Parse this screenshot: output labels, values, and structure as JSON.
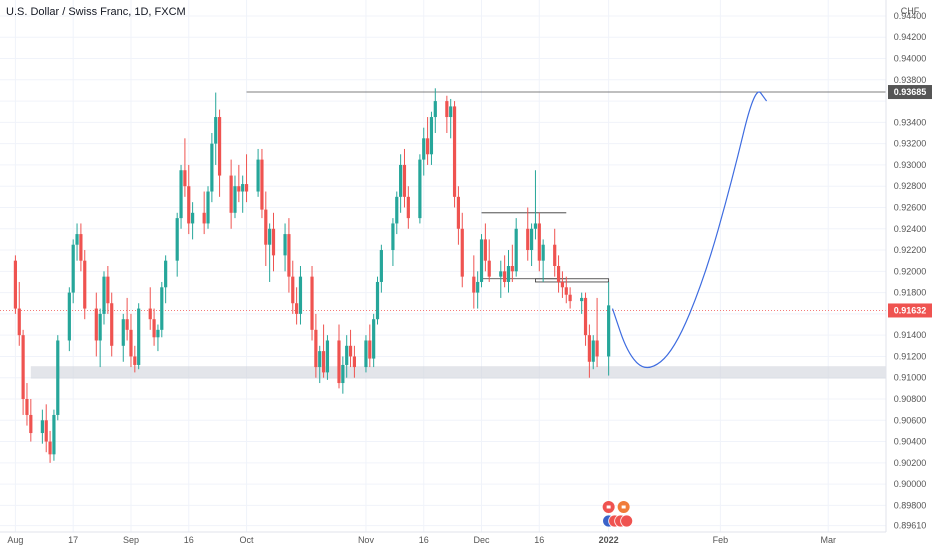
{
  "title": "U.S. Dollar / Swiss Franc, 1D, FXCM",
  "chart_data": {
    "type": "candlestick",
    "symbol": "USDCHF",
    "timeframe": "1D",
    "source": "FXCM",
    "currency_label": "CHF",
    "ylim": [
      0.8955,
      0.9455
    ],
    "y_ticks": [
      0.8961,
      0.898,
      0.9,
      0.902,
      0.904,
      0.906,
      0.908,
      0.91,
      0.912,
      0.914,
      0.916,
      0.918,
      0.92,
      0.922,
      0.924,
      0.926,
      0.928,
      0.93,
      0.932,
      0.934,
      0.936,
      0.938,
      0.94,
      0.942,
      0.944
    ],
    "y_tick_labels": [
      "0.89610",
      "0.89800",
      "0.90000",
      "0.90200",
      "0.90400",
      "0.90600",
      "0.90800",
      "0.91000",
      "0.91200",
      "0.91400",
      "0.91600",
      "0.91800",
      "0.92000",
      "0.92200",
      "0.92400",
      "0.92600",
      "0.92800",
      "0.93000",
      "0.93200",
      "0.93400",
      "0.93600",
      "0.93800",
      "0.94000",
      "0.94200",
      "0.94400"
    ],
    "x_tick_labels": [
      "Aug",
      "17",
      "Sep",
      "16",
      "Oct",
      "Nov",
      "16",
      "Dec",
      "16",
      "2022",
      "Feb",
      "Mar"
    ],
    "x_tick_dates": [
      "2021-08-02",
      "2021-08-17",
      "2021-09-01",
      "2021-09-16",
      "2021-10-01",
      "2021-11-01",
      "2021-11-16",
      "2021-12-01",
      "2021-12-16",
      "2022-01-03",
      "2022-02-01",
      "2022-03-01"
    ],
    "x_range": [
      "2021-07-29",
      "2022-03-16"
    ],
    "current_price": 0.91632,
    "current_price_label": "0.91632",
    "resistance_level": 0.93685,
    "resistance_label": "0.93685",
    "resistance_start_date": "2021-10-01",
    "support_zone": [
      0.9102,
      0.9108
    ],
    "support_zone_dates": [
      "2021-08-06",
      "2022-03-16"
    ],
    "consolidation_box": {
      "dates": [
        "2021-12-01",
        "2021-12-23"
      ],
      "top": 0.9255,
      "bottom": 0.9193
    },
    "small_box": {
      "dates": [
        "2021-12-15",
        "2022-01-03"
      ],
      "top": 0.9193,
      "bottom": 0.919
    },
    "projection": {
      "color": "#3e6ce0",
      "points": [
        [
          "2022-01-04",
          0.9165
        ],
        [
          "2022-01-08",
          0.9122
        ],
        [
          "2022-01-13",
          0.9105
        ],
        [
          "2022-01-20",
          0.9125
        ],
        [
          "2022-01-28",
          0.9195
        ],
        [
          "2022-02-04",
          0.9285
        ],
        [
          "2022-02-10",
          0.9375
        ],
        [
          "2022-02-13",
          0.936
        ]
      ]
    },
    "candles_ohlc": [
      [
        0.921,
        0.9215,
        0.916,
        0.9165
      ],
      [
        0.9165,
        0.919,
        0.913,
        0.914
      ],
      [
        0.914,
        0.9145,
        0.9065,
        0.908
      ],
      [
        0.908,
        0.9095,
        0.9055,
        0.9065
      ],
      [
        0.9065,
        0.908,
        0.904,
        0.9048
      ],
      [
        0.9048,
        0.907,
        0.9038,
        0.906
      ],
      [
        0.906,
        0.9075,
        0.903,
        0.904
      ],
      [
        0.904,
        0.905,
        0.902,
        0.9028
      ],
      [
        0.9028,
        0.907,
        0.9022,
        0.9065
      ],
      [
        0.9065,
        0.914,
        0.906,
        0.9135
      ],
      [
        0.9135,
        0.9185,
        0.9125,
        0.918
      ],
      [
        0.918,
        0.923,
        0.917,
        0.9225
      ],
      [
        0.9225,
        0.9245,
        0.921,
        0.9235
      ],
      [
        0.9235,
        0.9245,
        0.92,
        0.921
      ],
      [
        0.921,
        0.922,
        0.9155,
        0.9165
      ],
      [
        0.9165,
        0.918,
        0.912,
        0.9135
      ],
      [
        0.9135,
        0.9165,
        0.911,
        0.916
      ],
      [
        0.916,
        0.92,
        0.915,
        0.9195
      ],
      [
        0.9195,
        0.9205,
        0.916,
        0.917
      ],
      [
        0.917,
        0.918,
        0.912,
        0.913
      ],
      [
        0.913,
        0.916,
        0.9115,
        0.9155
      ],
      [
        0.9155,
        0.9175,
        0.9135,
        0.9145
      ],
      [
        0.9145,
        0.916,
        0.911,
        0.912
      ],
      [
        0.912,
        0.913,
        0.9105,
        0.9112
      ],
      [
        0.9112,
        0.917,
        0.9108,
        0.9165
      ],
      [
        0.9165,
        0.9185,
        0.9145,
        0.9155
      ],
      [
        0.9155,
        0.9165,
        0.913,
        0.9138
      ],
      [
        0.9138,
        0.915,
        0.9125,
        0.9145
      ],
      [
        0.9145,
        0.919,
        0.9138,
        0.9185
      ],
      [
        0.9185,
        0.9215,
        0.917,
        0.921
      ],
      [
        0.921,
        0.9255,
        0.9195,
        0.925
      ],
      [
        0.925,
        0.93,
        0.924,
        0.9295
      ],
      [
        0.9295,
        0.9325,
        0.927,
        0.928
      ],
      [
        0.928,
        0.93,
        0.9235,
        0.9245
      ],
      [
        0.9245,
        0.9265,
        0.923,
        0.9255
      ],
      [
        0.9255,
        0.9275,
        0.9235,
        0.9245
      ],
      [
        0.9245,
        0.928,
        0.924,
        0.9275
      ],
      [
        0.9275,
        0.933,
        0.9265,
        0.932
      ],
      [
        0.932,
        0.9368,
        0.93,
        0.9345
      ],
      [
        0.9345,
        0.9352,
        0.927,
        0.929
      ],
      [
        0.929,
        0.9305,
        0.924,
        0.9255
      ],
      [
        0.9255,
        0.929,
        0.925,
        0.928
      ],
      [
        0.928,
        0.93,
        0.9265,
        0.9275
      ],
      [
        0.9275,
        0.929,
        0.9255,
        0.9282
      ],
      [
        0.9282,
        0.931,
        0.9265,
        0.9275
      ],
      [
        0.9275,
        0.9315,
        0.927,
        0.9305
      ],
      [
        0.9305,
        0.9315,
        0.925,
        0.9258
      ],
      [
        0.9258,
        0.9275,
        0.9205,
        0.9225
      ],
      [
        0.9225,
        0.9245,
        0.919,
        0.924
      ],
      [
        0.924,
        0.9255,
        0.92,
        0.9215
      ],
      [
        0.9215,
        0.9245,
        0.92,
        0.9235
      ],
      [
        0.9235,
        0.925,
        0.918,
        0.9195
      ],
      [
        0.9195,
        0.921,
        0.916,
        0.917
      ],
      [
        0.917,
        0.9185,
        0.915,
        0.916
      ],
      [
        0.916,
        0.9205,
        0.915,
        0.9195
      ],
      [
        0.9195,
        0.9205,
        0.9135,
        0.9145
      ],
      [
        0.9145,
        0.916,
        0.91,
        0.911
      ],
      [
        0.911,
        0.913,
        0.9095,
        0.9125
      ],
      [
        0.9125,
        0.915,
        0.91,
        0.9105
      ],
      [
        0.9105,
        0.914,
        0.9098,
        0.9135
      ],
      [
        0.9135,
        0.915,
        0.909,
        0.9095
      ],
      [
        0.9095,
        0.912,
        0.9085,
        0.9112
      ],
      [
        0.9112,
        0.914,
        0.91,
        0.913
      ],
      [
        0.913,
        0.9145,
        0.911,
        0.912
      ],
      [
        0.912,
        0.913,
        0.91,
        0.911
      ],
      [
        0.911,
        0.914,
        0.9105,
        0.9135
      ],
      [
        0.9135,
        0.915,
        0.911,
        0.9118
      ],
      [
        0.9118,
        0.916,
        0.911,
        0.9155
      ],
      [
        0.9155,
        0.9195,
        0.915,
        0.919
      ],
      [
        0.919,
        0.9225,
        0.918,
        0.922
      ],
      [
        0.922,
        0.925,
        0.9205,
        0.9245
      ],
      [
        0.9245,
        0.9275,
        0.9235,
        0.927
      ],
      [
        0.927,
        0.931,
        0.9255,
        0.93
      ],
      [
        0.93,
        0.9315,
        0.926,
        0.927
      ],
      [
        0.927,
        0.928,
        0.924,
        0.925
      ],
      [
        0.925,
        0.931,
        0.9245,
        0.9305
      ],
      [
        0.9305,
        0.9335,
        0.929,
        0.9325
      ],
      [
        0.9325,
        0.9345,
        0.93,
        0.931
      ],
      [
        0.931,
        0.935,
        0.93,
        0.9345
      ],
      [
        0.9345,
        0.9372,
        0.933,
        0.936
      ],
      [
        0.936,
        0.9365,
        0.933,
        0.9345
      ],
      [
        0.9345,
        0.9362,
        0.9325,
        0.9355
      ],
      [
        0.9355,
        0.936,
        0.926,
        0.927
      ],
      [
        0.927,
        0.928,
        0.9225,
        0.924
      ],
      [
        0.924,
        0.9255,
        0.9185,
        0.9195
      ],
      [
        0.9195,
        0.9215,
        0.9165,
        0.918
      ],
      [
        0.918,
        0.92,
        0.9165,
        0.919
      ],
      [
        0.919,
        0.9235,
        0.9185,
        0.923
      ],
      [
        0.923,
        0.9245,
        0.92,
        0.921
      ],
      [
        0.921,
        0.923,
        0.919,
        0.9195
      ],
      [
        0.9195,
        0.921,
        0.9175,
        0.92
      ],
      [
        0.92,
        0.9215,
        0.9185,
        0.919
      ],
      [
        0.919,
        0.922,
        0.918,
        0.9205
      ],
      [
        0.9205,
        0.9225,
        0.919,
        0.92
      ],
      [
        0.92,
        0.925,
        0.9195,
        0.924
      ],
      [
        0.924,
        0.926,
        0.921,
        0.922
      ],
      [
        0.922,
        0.9245,
        0.9205,
        0.924
      ],
      [
        0.924,
        0.9295,
        0.923,
        0.9245
      ],
      [
        0.9245,
        0.9255,
        0.92,
        0.921
      ],
      [
        0.921,
        0.923,
        0.919,
        0.9225
      ],
      [
        0.9225,
        0.924,
        0.9195,
        0.9205
      ],
      [
        0.9205,
        0.9215,
        0.918,
        0.919
      ],
      [
        0.919,
        0.92,
        0.9175,
        0.9185
      ],
      [
        0.9185,
        0.9195,
        0.917,
        0.9178
      ],
      [
        0.9178,
        0.9185,
        0.9165,
        0.9172
      ],
      [
        0.9172,
        0.918,
        0.916,
        0.9175
      ],
      [
        0.9175,
        0.918,
        0.913,
        0.914
      ],
      [
        0.914,
        0.915,
        0.91,
        0.9115
      ],
      [
        0.9115,
        0.914,
        0.9108,
        0.9135
      ],
      [
        0.9135,
        0.9175,
        0.911,
        0.912
      ],
      [
        0.912,
        0.919,
        0.9102,
        0.9168
      ]
    ]
  },
  "markers": [
    "calendar-event-icons"
  ]
}
